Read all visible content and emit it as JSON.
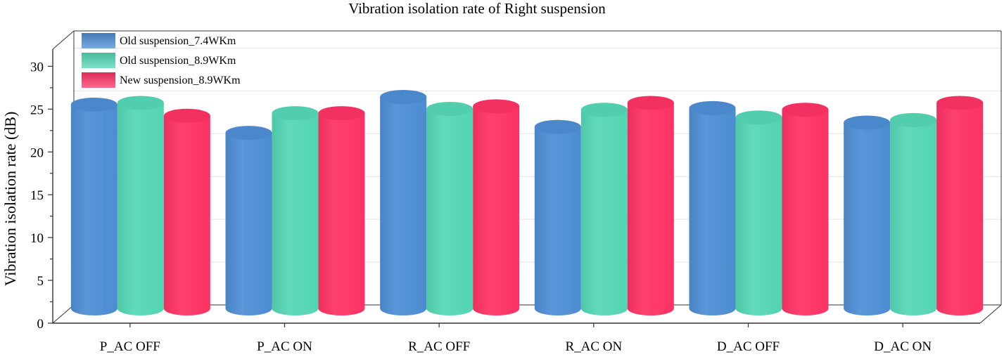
{
  "chart_data": {
    "type": "bar",
    "title": "Vibration isolation rate of Right suspension",
    "xlabel": "",
    "ylabel": "Vibration isolation rate (dB)",
    "ylim": [
      0,
      32
    ],
    "yticks": [
      0,
      5,
      10,
      15,
      20,
      25,
      30
    ],
    "categories": [
      "P_AC OFF",
      "P_AC ON",
      "R_AC OFF",
      "R_AC ON",
      "D_AC OFF",
      "D_AC ON"
    ],
    "series": [
      {
        "name": "Old suspension_7.4WKm",
        "color": "#4f8fd6",
        "values": [
          23.8,
          20.5,
          24.7,
          21.2,
          23.4,
          21.7
        ]
      },
      {
        "name": "Old suspension_8.9WKm",
        "color": "#56d8b6",
        "values": [
          24.0,
          22.8,
          23.3,
          23.2,
          22.3,
          22.0
        ]
      },
      {
        "name": "New suspension_8.9WKm",
        "color": "#ff3466",
        "values": [
          22.5,
          22.8,
          23.6,
          24.0,
          23.2,
          24.0
        ]
      }
    ],
    "grid": true,
    "legend_position": "top-left"
  }
}
